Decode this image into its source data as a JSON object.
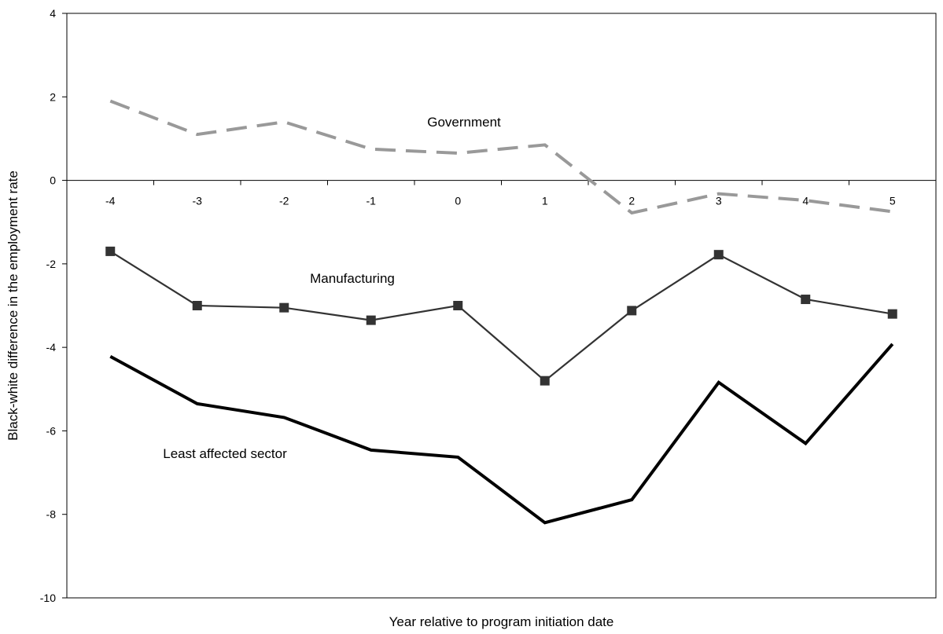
{
  "chart_data": {
    "type": "line",
    "title": "",
    "xlabel": "Year relative to program initiation date",
    "ylabel": "Black-white difference in the employment rate",
    "ylim": [
      -10,
      4
    ],
    "yticks": [
      -10,
      -8,
      -6,
      -4,
      -2,
      0,
      2,
      4
    ],
    "categories": [
      "-4",
      "-3",
      "-2",
      "-1",
      "0",
      "1",
      "2",
      "3",
      "4",
      "5"
    ],
    "x": [
      -4,
      -3,
      -2,
      -1,
      0,
      1,
      2,
      3,
      4,
      5
    ],
    "grid": false,
    "legend": "none (series labeled directly on chart)",
    "series": [
      {
        "name": "Government",
        "style": "dashed",
        "color": "#999999",
        "values": [
          1.9,
          1.1,
          1.4,
          0.75,
          0.65,
          0.85,
          -0.78,
          -0.32,
          -0.48,
          -0.75
        ]
      },
      {
        "name": "Manufacturing",
        "style": "solid-square-markers",
        "color": "#333333",
        "values": [
          -1.7,
          -3.0,
          -3.05,
          -3.35,
          -3.0,
          -4.8,
          -3.12,
          -1.78,
          -2.85,
          -3.2
        ]
      },
      {
        "name": "Least affected sector",
        "style": "solid-bold",
        "color": "#000000",
        "values": [
          -4.22,
          -5.35,
          -5.68,
          -6.46,
          -6.63,
          -8.2,
          -7.65,
          -4.84,
          -6.3,
          -3.92
        ]
      }
    ]
  }
}
